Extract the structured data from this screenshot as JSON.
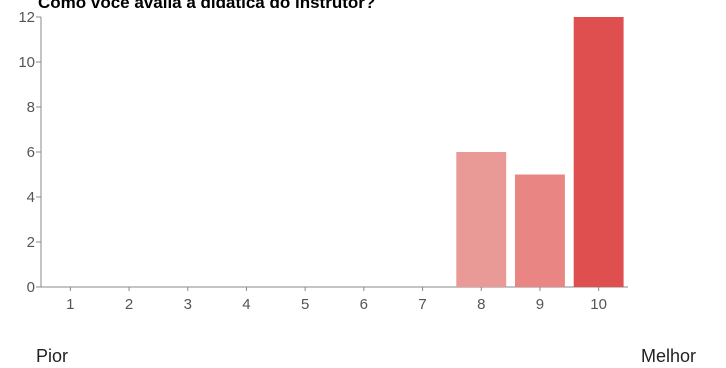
{
  "chart_data": {
    "type": "bar",
    "title": "Como você avalia a didática do instrutor?",
    "categories": [
      "1",
      "2",
      "3",
      "4",
      "5",
      "6",
      "7",
      "8",
      "9",
      "10"
    ],
    "values": [
      0,
      0,
      0,
      0,
      0,
      0,
      0,
      6,
      5,
      12
    ],
    "ylim": [
      0,
      12
    ],
    "yticks": [
      0,
      2,
      4,
      6,
      8,
      10,
      12
    ],
    "xlabel": "",
    "ylabel": "",
    "grid": false,
    "bar_colors": [
      "#e99a97",
      "#e99a97",
      "#e99a97",
      "#e99a97",
      "#e99a97",
      "#e99a97",
      "#e99a97",
      "#e99a97",
      "#e98583",
      "#df4f4f"
    ]
  },
  "scale": {
    "left_label": "Pior",
    "right_label": "Melhor"
  }
}
